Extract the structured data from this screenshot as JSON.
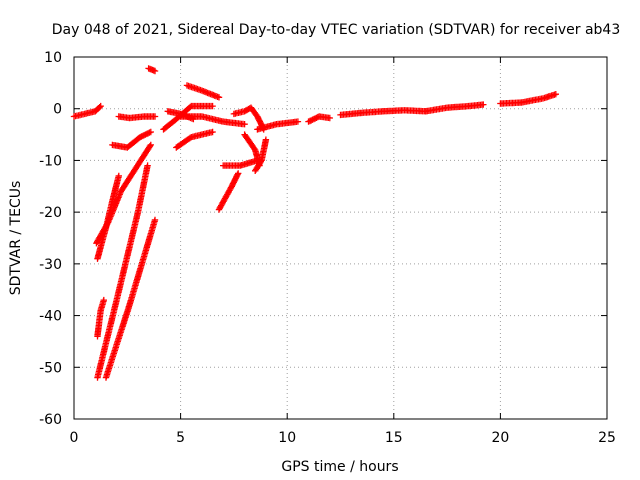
{
  "chart_data": {
    "type": "scatter",
    "title": "Day 048 of 2021, Sidereal Day-to-day VTEC variation (SDTVAR) for receiver ab43",
    "xlabel": "GPS time / hours",
    "ylabel": "SDTVAR / TECUs",
    "xlim": [
      0,
      25
    ],
    "ylim": [
      -60,
      10
    ],
    "x_ticks": [
      0,
      5,
      10,
      15,
      20,
      25
    ],
    "y_ticks": [
      -60,
      -50,
      -40,
      -30,
      -20,
      -10,
      0,
      10
    ],
    "grid": true,
    "legend": "none",
    "marker": "+",
    "color": "#ff0000",
    "series": [
      {
        "segments": [
          [
            [
              0.0,
              -1.5
            ],
            [
              0.5,
              -1.0
            ],
            [
              1.0,
              -0.5
            ],
            [
              1.25,
              0.5
            ]
          ],
          [
            [
              1.1,
              -52
            ],
            [
              2.0,
              -37
            ],
            [
              3.0,
              -20
            ],
            [
              3.45,
              -11
            ]
          ],
          [
            [
              1.5,
              -52
            ],
            [
              2.6,
              -38
            ],
            [
              3.8,
              -21.5
            ]
          ],
          [
            [
              1.05,
              -26
            ],
            [
              1.6,
              -22
            ],
            [
              2.2,
              -16
            ],
            [
              2.9,
              -11.5
            ],
            [
              3.6,
              -7
            ]
          ],
          [
            [
              1.1,
              -29
            ],
            [
              1.5,
              -23
            ],
            [
              1.85,
              -17
            ],
            [
              2.1,
              -13
            ]
          ],
          [
            [
              1.1,
              -44
            ],
            [
              1.25,
              -39
            ],
            [
              1.4,
              -37
            ]
          ],
          [
            [
              1.8,
              -7
            ],
            [
              2.5,
              -7.5
            ],
            [
              3.1,
              -5.5
            ],
            [
              3.6,
              -4.5
            ]
          ],
          [
            [
              2.1,
              -1.5
            ],
            [
              2.6,
              -1.8
            ],
            [
              3.3,
              -1.5
            ],
            [
              3.8,
              -1.5
            ]
          ],
          [
            [
              3.5,
              7.8
            ],
            [
              3.8,
              7.3
            ]
          ],
          [
            [
              4.2,
              -4
            ],
            [
              4.8,
              -2
            ],
            [
              5.5,
              0.5
            ],
            [
              6.5,
              0.5
            ]
          ],
          [
            [
              4.4,
              -0.5
            ],
            [
              5.0,
              -1
            ],
            [
              5.6,
              -2
            ]
          ],
          [
            [
              4.8,
              -7.5
            ],
            [
              5.5,
              -5.5
            ],
            [
              6.5,
              -4.5
            ]
          ],
          [
            [
              5.3,
              4.5
            ],
            [
              6.0,
              3.5
            ],
            [
              6.8,
              2.2
            ]
          ],
          [
            [
              5.0,
              -1.5
            ],
            [
              6.0,
              -1.5
            ],
            [
              7.0,
              -2.5
            ],
            [
              8.0,
              -3
            ]
          ],
          [
            [
              6.8,
              -19.5
            ],
            [
              7.4,
              -15
            ],
            [
              7.7,
              -12.5
            ]
          ],
          [
            [
              7.0,
              -11
            ],
            [
              7.8,
              -11
            ],
            [
              8.6,
              -10
            ]
          ],
          [
            [
              7.5,
              -1
            ],
            [
              8.0,
              -0.5
            ],
            [
              8.3,
              0.2
            ],
            [
              8.6,
              -1.5
            ],
            [
              8.9,
              -4
            ]
          ],
          [
            [
              8.0,
              -5
            ],
            [
              8.5,
              -8
            ],
            [
              8.7,
              -11
            ]
          ],
          [
            [
              8.5,
              -12
            ],
            [
              8.8,
              -10
            ],
            [
              9.0,
              -6
            ]
          ],
          [
            [
              8.6,
              -4
            ],
            [
              9.5,
              -3
            ],
            [
              10.5,
              -2.5
            ]
          ],
          [
            [
              11.0,
              -2.5
            ],
            [
              11.5,
              -1.5
            ],
            [
              12.0,
              -1.8
            ]
          ],
          [
            [
              12.5,
              -1.2
            ],
            [
              13.5,
              -0.8
            ],
            [
              14.5,
              -0.5
            ]
          ],
          [
            [
              14.5,
              -0.5
            ],
            [
              15.5,
              -0.3
            ],
            [
              16.5,
              -0.5
            ]
          ],
          [
            [
              16.5,
              -0.5
            ],
            [
              17.5,
              0.2
            ],
            [
              18.5,
              0.5
            ],
            [
              19.2,
              0.8
            ]
          ],
          [
            [
              20.0,
              1.0
            ],
            [
              21.0,
              1.2
            ],
            [
              22.0,
              2.0
            ],
            [
              22.6,
              2.8
            ]
          ]
        ]
      }
    ]
  }
}
